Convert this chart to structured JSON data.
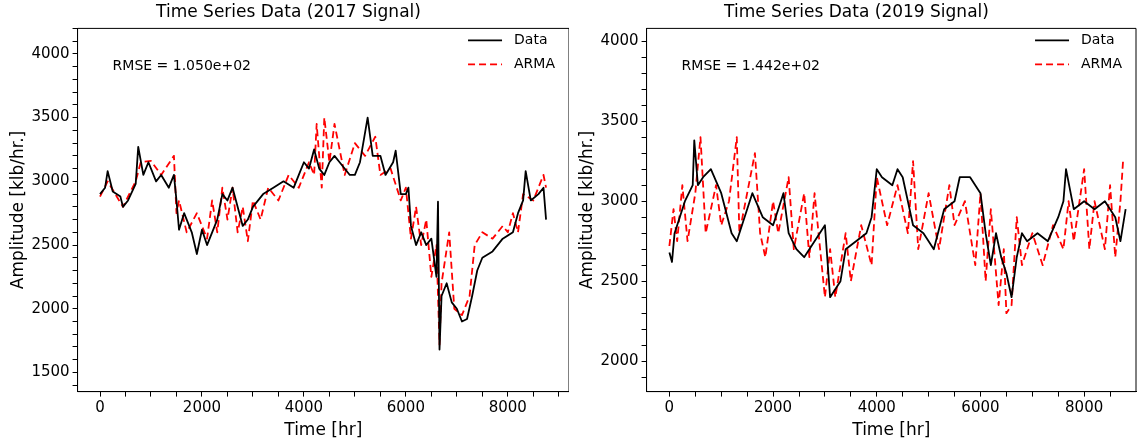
{
  "chart_data": [
    {
      "type": "line",
      "title": "Time Series Data (2017 Signal)",
      "xlabel": "Time [hr]",
      "ylabel": "Amplitude [klb/hr.]",
      "annotations": [
        "RMSE = 1.050e+02"
      ],
      "legend": "top right",
      "grid": false,
      "xlim": [
        -440,
        9200
      ],
      "xticks": [
        0,
        {
          "value": 500,
          "label": null
        },
        {
          "value": 1000,
          "label": null
        },
        {
          "value": 1500,
          "label": null
        },
        2000,
        {
          "value": 2500,
          "label": null
        },
        {
          "value": 3000,
          "label": null
        },
        {
          "value": 3500,
          "label": null
        },
        4000,
        {
          "value": 4500,
          "label": null
        },
        {
          "value": 5000,
          "label": null
        },
        {
          "value": 5500,
          "label": null
        },
        6000,
        {
          "value": 6500,
          "label": null
        },
        {
          "value": 7000,
          "label": null
        },
        {
          "value": 7500,
          "label": null
        },
        8000,
        {
          "value": 8500,
          "label": null
        },
        {
          "value": 9000,
          "label": null
        }
      ],
      "ylim": [
        1350,
        4200
      ],
      "yticks": [
        {
          "value": 1400,
          "label": null
        },
        1500,
        {
          "value": 1600,
          "label": null
        },
        {
          "value": 1700,
          "label": null
        },
        {
          "value": 1800,
          "label": null
        },
        {
          "value": 1900,
          "label": null
        },
        2000,
        {
          "value": 2100,
          "label": null
        },
        {
          "value": 2200,
          "label": null
        },
        {
          "value": 2300,
          "label": null
        },
        {
          "value": 2400,
          "label": null
        },
        2500,
        {
          "value": 2600,
          "label": null
        },
        {
          "value": 2700,
          "label": null
        },
        {
          "value": 2800,
          "label": null
        },
        {
          "value": 2900,
          "label": null
        },
        3000,
        {
          "value": 3100,
          "label": null
        },
        {
          "value": 3200,
          "label": null
        },
        {
          "value": 3300,
          "label": null
        },
        {
          "value": 3400,
          "label": null
        },
        3500,
        {
          "value": 3600,
          "label": null
        },
        {
          "value": 3700,
          "label": null
        },
        {
          "value": 3800,
          "label": null
        },
        {
          "value": 3900,
          "label": null
        },
        4000,
        {
          "value": 4100,
          "label": null
        },
        {
          "value": 4200,
          "label": null
        }
      ],
      "series": [
        {
          "name": "Data",
          "color": "#000000",
          "line_style": "solid",
          "x": [
            0,
            100,
            150,
            250,
            400,
            450,
            550,
            700,
            750,
            850,
            950,
            1100,
            1200,
            1350,
            1450,
            1500,
            1550,
            1650,
            1800,
            1900,
            2000,
            2100,
            2300,
            2400,
            2500,
            2600,
            2800,
            2900,
            3000,
            3200,
            3400,
            3600,
            3800,
            3900,
            4000,
            4100,
            4200,
            4300,
            4400,
            4500,
            4600,
            4700,
            4900,
            5000,
            5100,
            5250,
            5350,
            5500,
            5600,
            5750,
            5800,
            5900,
            6000,
            6050,
            6100,
            6200,
            6300,
            6400,
            6500,
            6600,
            6630,
            6660,
            6700,
            6800,
            6900,
            7000,
            7100,
            7200,
            7300,
            7400,
            7500,
            7700,
            7900,
            8100,
            8200,
            8300,
            8350,
            8450,
            8600,
            8700,
            8750
          ],
          "values": [
            2900,
            2950,
            3080,
            2920,
            2880,
            2800,
            2850,
            2980,
            3270,
            3050,
            3150,
            3000,
            3050,
            2950,
            3050,
            2850,
            2620,
            2750,
            2600,
            2430,
            2620,
            2500,
            2700,
            2900,
            2850,
            2950,
            2650,
            2700,
            2800,
            2900,
            2950,
            3000,
            2950,
            3050,
            3150,
            3100,
            3250,
            3100,
            3050,
            3150,
            3200,
            3150,
            3050,
            3050,
            3150,
            3500,
            3200,
            3200,
            3050,
            3150,
            3240,
            2900,
            2900,
            2950,
            2650,
            2500,
            2600,
            2500,
            2550,
            2250,
            2840,
            1680,
            2100,
            2200,
            2050,
            2000,
            1900,
            1920,
            2100,
            2300,
            2400,
            2450,
            2550,
            2600,
            2750,
            2850,
            3080,
            2850,
            2900,
            2950,
            2700
          ]
        },
        {
          "name": "ARMA",
          "color": "#ff0000",
          "line_style": "dashed",
          "x": [
            0,
            150,
            450,
            700,
            800,
            1000,
            1200,
            1450,
            1500,
            1550,
            1700,
            1900,
            2000,
            2100,
            2200,
            2300,
            2400,
            2500,
            2600,
            2700,
            2800,
            2900,
            3000,
            3150,
            3300,
            3500,
            3700,
            3900,
            4100,
            4200,
            4250,
            4350,
            4400,
            4500,
            4600,
            4800,
            5000,
            5200,
            5400,
            5500,
            5700,
            5900,
            6000,
            6100,
            6200,
            6300,
            6400,
            6500,
            6600,
            6660,
            6700,
            6850,
            6950,
            7100,
            7250,
            7350,
            7500,
            7700,
            7900,
            8000,
            8100,
            8200,
            8300,
            8500,
            8700,
            8750
          ],
          "values": [
            2880,
            3000,
            2800,
            3000,
            3150,
            3160,
            3050,
            3200,
            2750,
            2850,
            2600,
            2750,
            2650,
            2550,
            2850,
            2600,
            2950,
            2700,
            2950,
            2600,
            2800,
            2530,
            2850,
            2700,
            2950,
            2850,
            3050,
            2950,
            3150,
            3050,
            3450,
            2950,
            3500,
            3150,
            3450,
            3050,
            3300,
            3200,
            3350,
            3050,
            3100,
            2850,
            2950,
            2550,
            2800,
            2500,
            2700,
            2250,
            2500,
            1720,
            2200,
            2600,
            2000,
            1950,
            2100,
            2500,
            2600,
            2550,
            2650,
            2600,
            2750,
            2600,
            2900,
            2850,
            3050,
            2950
          ]
        }
      ]
    },
    {
      "type": "line",
      "title": "Time Series Data (2019 Signal)",
      "xlabel": "Time [hr]",
      "ylabel": "Amplitude [klb/hr.]",
      "annotations": [
        "RMSE = 1.442e+02"
      ],
      "legend": "top right",
      "grid": false,
      "xlim": [
        -440,
        9000
      ],
      "xticks": [
        0,
        {
          "value": 500,
          "label": null
        },
        {
          "value": 1000,
          "label": null
        },
        {
          "value": 1500,
          "label": null
        },
        2000,
        {
          "value": 2500,
          "label": null
        },
        {
          "value": 3000,
          "label": null
        },
        {
          "value": 3500,
          "label": null
        },
        4000,
        {
          "value": 4500,
          "label": null
        },
        {
          "value": 5000,
          "label": null
        },
        {
          "value": 5500,
          "label": null
        },
        6000,
        {
          "value": 6500,
          "label": null
        },
        {
          "value": 7000,
          "label": null
        },
        {
          "value": 7500,
          "label": null
        },
        8000,
        {
          "value": 8500,
          "label": null
        }
      ],
      "ylim": [
        1810,
        4080
      ],
      "yticks": [
        {
          "value": 1900,
          "label": null
        },
        2000,
        {
          "value": 2100,
          "label": null
        },
        {
          "value": 2200,
          "label": null
        },
        {
          "value": 2300,
          "label": null
        },
        {
          "value": 2400,
          "label": null
        },
        2500,
        {
          "value": 2600,
          "label": null
        },
        {
          "value": 2700,
          "label": null
        },
        {
          "value": 2800,
          "label": null
        },
        {
          "value": 2900,
          "label": null
        },
        3000,
        {
          "value": 3100,
          "label": null
        },
        {
          "value": 3200,
          "label": null
        },
        {
          "value": 3300,
          "label": null
        },
        {
          "value": 3400,
          "label": null
        },
        3500,
        {
          "value": 3600,
          "label": null
        },
        {
          "value": 3700,
          "label": null
        },
        {
          "value": 3800,
          "label": null
        },
        {
          "value": 3900,
          "label": null
        },
        4000
      ],
      "series": [
        {
          "name": "Data",
          "color": "#000000",
          "line_style": "solid",
          "x": [
            0,
            50,
            100,
            300,
            450,
            480,
            550,
            650,
            800,
            1000,
            1200,
            1300,
            1500,
            1600,
            1800,
            2000,
            2200,
            2300,
            2450,
            2600,
            2800,
            3000,
            3100,
            3300,
            3400,
            3600,
            3800,
            3900,
            4000,
            4100,
            4300,
            4400,
            4500,
            4700,
            4900,
            5100,
            5300,
            5500,
            5600,
            5800,
            6000,
            6100,
            6200,
            6300,
            6400,
            6500,
            6600,
            6700,
            6800,
            6900,
            7100,
            7300,
            7500,
            7600,
            7650,
            7800,
            8000,
            8200,
            8400,
            8600,
            8700,
            8800
          ],
          "values": [
            2680,
            2620,
            2800,
            3000,
            3100,
            3380,
            3100,
            3150,
            3200,
            3050,
            2800,
            2750,
            2950,
            3050,
            2900,
            2850,
            3050,
            2800,
            2700,
            2650,
            2750,
            2850,
            2400,
            2500,
            2700,
            2750,
            2800,
            2900,
            3200,
            3150,
            3100,
            3200,
            3150,
            2850,
            2800,
            2700,
            2950,
            3000,
            3150,
            3150,
            3050,
            2800,
            2600,
            2800,
            2650,
            2550,
            2400,
            2650,
            2800,
            2750,
            2800,
            2750,
            2900,
            3000,
            3200,
            2950,
            3000,
            2950,
            3000,
            2900,
            2750,
            2950
          ]
        },
        {
          "name": "ARMA",
          "color": "#ff0000",
          "line_style": "dashed",
          "x": [
            0,
            80,
            150,
            250,
            350,
            500,
            600,
            700,
            900,
            1000,
            1150,
            1300,
            1350,
            1500,
            1650,
            1750,
            1850,
            2000,
            2100,
            2300,
            2400,
            2600,
            2700,
            2800,
            3000,
            3100,
            3200,
            3400,
            3500,
            3700,
            3900,
            4000,
            4200,
            4400,
            4600,
            4700,
            4800,
            5000,
            5200,
            5400,
            5500,
            5700,
            5900,
            6000,
            6100,
            6200,
            6350,
            6450,
            6500,
            6600,
            6700,
            6800,
            7000,
            7200,
            7400,
            7600,
            7700,
            7800,
            8000,
            8100,
            8200,
            8400,
            8500,
            8600,
            8700,
            8750
          ],
          "values": [
            2720,
            2950,
            2750,
            3100,
            2750,
            3050,
            3400,
            2800,
            3100,
            2850,
            3000,
            3400,
            2800,
            3050,
            3300,
            2800,
            2650,
            3000,
            2800,
            3150,
            2700,
            3050,
            2650,
            3050,
            2400,
            2700,
            2400,
            2800,
            2500,
            2850,
            2600,
            3150,
            2850,
            3100,
            2800,
            3250,
            2700,
            3050,
            2700,
            3100,
            2850,
            3000,
            2600,
            3050,
            2500,
            2950,
            2350,
            2700,
            2300,
            2350,
            2900,
            2600,
            2800,
            2600,
            2850,
            2700,
            3000,
            2750,
            3200,
            2700,
            3000,
            2700,
            3100,
            2650,
            3000,
            3250
          ]
        }
      ]
    }
  ]
}
